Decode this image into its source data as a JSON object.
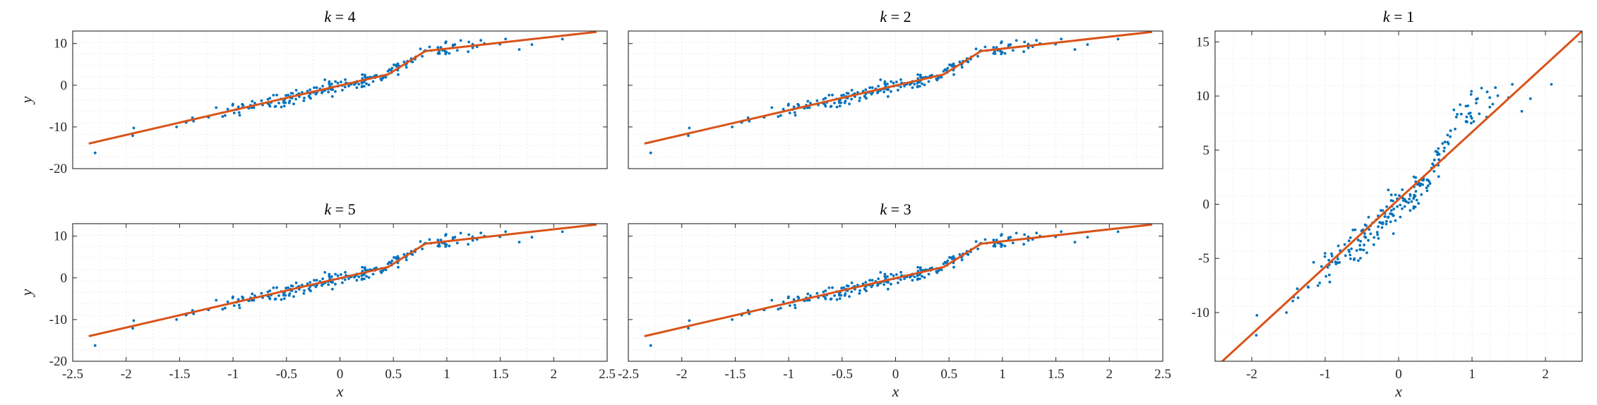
{
  "chart_data": [
    {
      "type": "line",
      "title": "k = 4",
      "title_var": "k",
      "title_rest": " = 4",
      "xlabel": "",
      "ylabel": "y",
      "xlim": [
        -2.5,
        2.5
      ],
      "ylim": [
        -20,
        13
      ],
      "xticks": [],
      "yticks": [
        -20,
        -10,
        0,
        10
      ],
      "grid": true,
      "series": [
        {
          "kind": "scatter",
          "color": "#0072BD",
          "generator": "piecewise"
        },
        {
          "kind": "line",
          "color": "#D95319",
          "x": [
            -2.35,
            0.45,
            0.8,
            2.4
          ],
          "y": [
            -14.0,
            2.6,
            8.2,
            12.8
          ]
        }
      ]
    },
    {
      "type": "line",
      "title": "k = 2",
      "title_var": "k",
      "title_rest": " = 2",
      "xlabel": "",
      "ylabel": "",
      "xlim": [
        -2.5,
        2.5
      ],
      "ylim": [
        -20,
        13
      ],
      "xticks": [],
      "yticks": [
        -20,
        -10,
        0,
        10
      ],
      "show_ytick_labels": false,
      "grid": true,
      "series": [
        {
          "kind": "scatter",
          "color": "#0072BD",
          "generator": "piecewise"
        },
        {
          "kind": "line",
          "color": "#D95319",
          "x": [
            -2.35,
            0.45,
            0.8,
            2.4
          ],
          "y": [
            -14.0,
            2.6,
            8.2,
            12.8
          ]
        }
      ]
    },
    {
      "type": "line",
      "title": "k = 5",
      "title_var": "k",
      "title_rest": " = 5",
      "xlabel": "x",
      "ylabel": "y",
      "xlim": [
        -2.5,
        2.5
      ],
      "ylim": [
        -20,
        13
      ],
      "xticks": [
        -2.5,
        -2,
        -1.5,
        -1,
        -0.5,
        0,
        0.5,
        1,
        1.5,
        2,
        2.5
      ],
      "yticks": [
        -20,
        -10,
        0,
        10
      ],
      "grid": true,
      "series": [
        {
          "kind": "scatter",
          "color": "#0072BD",
          "generator": "piecewise"
        },
        {
          "kind": "line",
          "color": "#D95319",
          "x": [
            -2.35,
            0.45,
            0.8,
            2.4
          ],
          "y": [
            -14.0,
            2.6,
            8.2,
            12.8
          ]
        }
      ]
    },
    {
      "type": "line",
      "title": "k = 3",
      "title_var": "k",
      "title_rest": " = 3",
      "xlabel": "x",
      "ylabel": "",
      "xlim": [
        -2.5,
        2.5
      ],
      "ylim": [
        -20,
        13
      ],
      "xticks": [
        -2.5,
        -2,
        -1.5,
        -1,
        -0.5,
        0,
        0.5,
        1,
        1.5,
        2,
        2.5
      ],
      "yticks": [
        -20,
        -10,
        0,
        10
      ],
      "show_ytick_labels": false,
      "grid": true,
      "series": [
        {
          "kind": "scatter",
          "color": "#0072BD",
          "generator": "piecewise"
        },
        {
          "kind": "line",
          "color": "#D95319",
          "x": [
            -2.35,
            0.45,
            0.8,
            2.4
          ],
          "y": [
            -14.0,
            2.6,
            8.2,
            12.8
          ]
        }
      ]
    },
    {
      "type": "line",
      "title": "k = 1",
      "title_var": "k",
      "title_rest": " = 1",
      "xlabel": "x",
      "ylabel": "",
      "xlim": [
        -2.5,
        2.5
      ],
      "ylim": [
        -14.5,
        16
      ],
      "xticks": [
        -2,
        -1,
        0,
        1,
        2
      ],
      "yticks": [
        -10,
        -5,
        0,
        5,
        10,
        15
      ],
      "grid": true,
      "series": [
        {
          "kind": "scatter",
          "color": "#0072BD",
          "generator": "piecewise"
        },
        {
          "kind": "line",
          "color": "#D95319",
          "x": [
            -2.45,
            2.5
          ],
          "y": [
            -14.8,
            16.0
          ]
        }
      ]
    }
  ]
}
